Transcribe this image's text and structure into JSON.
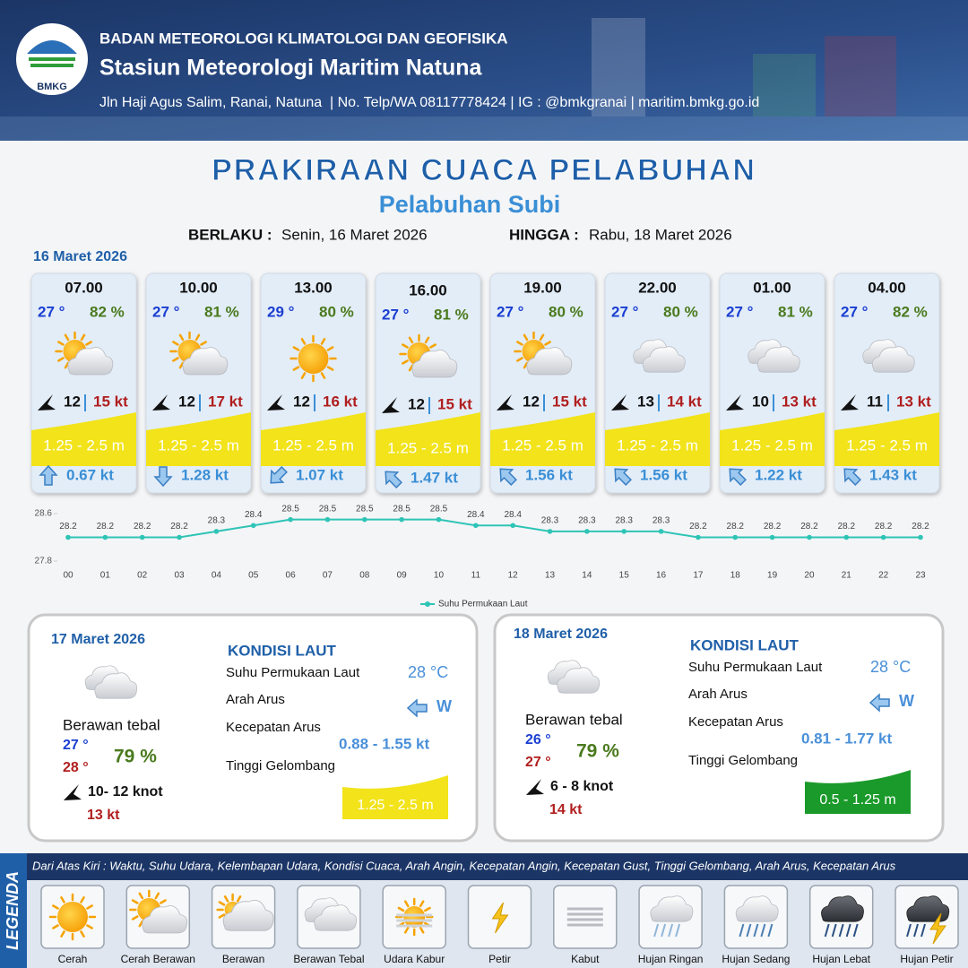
{
  "header": {
    "agency": "BADAN METEOROLOGI KLIMATOLOGI DAN GEOFISIKA",
    "station": "Stasiun Meteorologi Maritim Natuna",
    "contact": "Jln Haji Agus Salim, Ranai, Natuna  | No. Telp/WA 08117778424 | IG : @bmkgranai | maritim.bmkg.go.id",
    "logo": "BMKG"
  },
  "title": "PRAKIRAAN CUACA PELABUHAN",
  "subtitle": "Pelabuhan Subi",
  "validity": {
    "from_label": "BERLAKU :",
    "from": "Senin, 16 Maret 2026",
    "until_label": "HINGGA :",
    "until": "Rabu, 18 Maret 2026"
  },
  "today": {
    "date": "16 Maret 2026",
    "slots": [
      {
        "time": "07.00",
        "temp": "27 °",
        "humidity": "82 %",
        "wind": "12",
        "gust": "15 kt",
        "wave": "1.25 - 2.5 m",
        "current": "0.67 kt"
      },
      {
        "time": "10.00",
        "temp": "27 °",
        "humidity": "81 %",
        "wind": "12",
        "gust": "17 kt",
        "wave": "1.25 - 2.5 m",
        "current": "1.28 kt"
      },
      {
        "time": "13.00",
        "temp": "29 °",
        "humidity": "80 %",
        "wind": "12",
        "gust": "16 kt",
        "wave": "1.25 - 2.5 m",
        "current": "1.07 kt"
      },
      {
        "time": "16.00",
        "temp": "27 °",
        "humidity": "81 %",
        "wind": "12",
        "gust": "15 kt",
        "wave": "1.25 - 2.5 m",
        "current": "1.47 kt"
      },
      {
        "time": "19.00",
        "temp": "27 °",
        "humidity": "80 %",
        "wind": "12",
        "gust": "15 kt",
        "wave": "1.25 - 2.5 m",
        "current": "1.56 kt"
      },
      {
        "time": "22.00",
        "temp": "27 °",
        "humidity": "80 %",
        "wind": "13",
        "gust": "14 kt",
        "wave": "1.25 - 2.5 m",
        "current": "1.56 kt"
      },
      {
        "time": "01.00",
        "temp": "27 °",
        "humidity": "81 %",
        "wind": "10",
        "gust": "13 kt",
        "wave": "1.25 - 2.5 m",
        "current": "1.22 kt"
      },
      {
        "time": "04.00",
        "temp": "27 °",
        "humidity": "82 %",
        "wind": "11",
        "gust": "13 kt",
        "wave": "1.25 - 2.5 m",
        "current": "1.43 kt"
      }
    ]
  },
  "chart_data": {
    "type": "line",
    "categories": [
      "00",
      "01",
      "02",
      "03",
      "04",
      "05",
      "06",
      "07",
      "08",
      "09",
      "10",
      "11",
      "12",
      "13",
      "14",
      "15",
      "16",
      "17",
      "18",
      "19",
      "20",
      "21",
      "22",
      "23"
    ],
    "series": [
      {
        "name": "Suhu Permukaan Laut",
        "color": "#2ec4b6",
        "values": [
          28.2,
          28.2,
          28.2,
          28.2,
          28.3,
          28.4,
          28.5,
          28.5,
          28.5,
          28.5,
          28.5,
          28.4,
          28.4,
          28.3,
          28.3,
          28.3,
          28.3,
          28.2,
          28.2,
          28.2,
          28.2,
          28.2,
          28.2,
          28.2
        ]
      }
    ],
    "ylim": [
      27.8,
      28.6
    ],
    "yticks": [
      27.8,
      28.6
    ]
  },
  "days": [
    {
      "date": "17 Maret 2026",
      "sea_heading": "KONDISI LAUT",
      "condition": "Berawan tebal",
      "temp_min": "27 °",
      "temp_max": "28 °",
      "humidity": "79 %",
      "wind": "10- 12 knot",
      "gust": "13 kt",
      "wave_color": "#f2e31a",
      "sea": [
        {
          "label": "Suhu Permukaan Laut",
          "value": "28 °C"
        },
        {
          "label": "Arah Arus",
          "value": "W"
        },
        {
          "label": "Kecepatan Arus",
          "value": "0.88  - 1.55 kt"
        },
        {
          "label": "Tinggi Gelombang",
          "value": "1.25 - 2.5 m"
        }
      ]
    },
    {
      "date": "18 Maret 2026",
      "sea_heading": "KONDISI LAUT",
      "condition": "Berawan tebal",
      "temp_min": "26 °",
      "temp_max": "27 °",
      "humidity": "79 %",
      "wind": "6  - 8 knot",
      "gust": "14 kt",
      "wave_color": "#1a9a2a",
      "sea": [
        {
          "label": "Suhu Permukaan Laut",
          "value": "28 °C"
        },
        {
          "label": "Arah Arus",
          "value": "W"
        },
        {
          "label": "Kecepatan Arus",
          "value": "0.81 - 1.77 kt"
        },
        {
          "label": "Tinggi Gelombang",
          "value": "0.5 - 1.25 m"
        }
      ]
    }
  ],
  "legend": {
    "title": "LEGENDA",
    "description": "Dari Atas Kiri : Waktu, Suhu Udara, Kelembapan Udara, Kondisi Cuaca, Arah Angin, Kecepatan Angin, Kecepatan Gust, Tinggi Gelombang, Arah Arus, Kecepatan Arus",
    "items": [
      "Cerah",
      "Cerah Berawan",
      "Berawan",
      "Berawan Tebal",
      "Udara Kabur",
      "Petir",
      "Kabut",
      "Hujan Ringan",
      "Hujan Sedang",
      "Hujan Lebat",
      "Hujan Petir"
    ]
  }
}
